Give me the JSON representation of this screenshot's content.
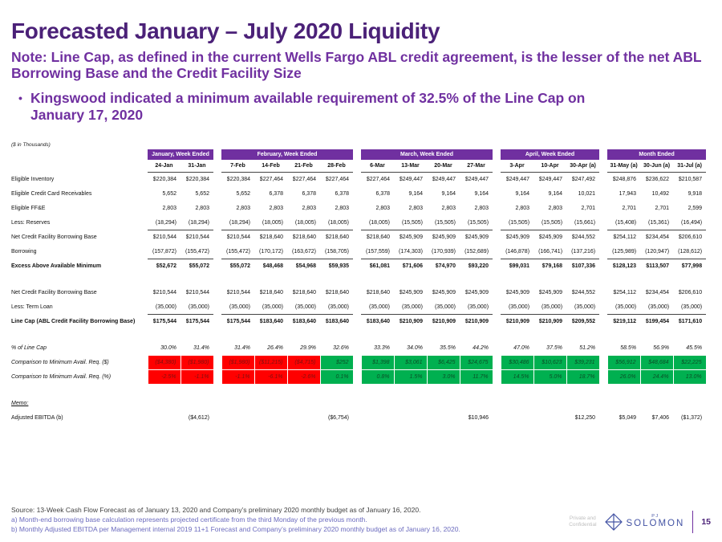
{
  "slide": {
    "title": "Forecasted January – July 2020 Liquidity",
    "subtitle": "Note: Line Cap, as defined in the current Wells Fargo ABL credit agreement, is the lesser of the net ABL Borrowing Base and the Credit Facility Size",
    "bullet_marker": "•",
    "bullet": "Kingswood indicated a minimum available requirement of 32.5% of the Line Cap on January 17, 2020",
    "units_label": "($ in Thousands)"
  },
  "colors": {
    "title": "#4B2178",
    "accent": "#7030A0",
    "header_bg": "#7030A0",
    "negative_bg": "#FF0000",
    "negative_text": "#7F1010",
    "positive_bg": "#00B050",
    "positive_text": "#0B4F27",
    "note_text": "#6B6BBE",
    "source_text": "#3F3F3F",
    "brand": "#4353A4",
    "confidential_text": "#BFBFBF"
  },
  "table": {
    "groups": [
      {
        "label": "January, Week Ended",
        "span": 2
      },
      {
        "label": "February, Week Ended",
        "span": 4
      },
      {
        "label": "March, Week Ended",
        "span": 4
      },
      {
        "label": "April, Week Ended",
        "span": 3
      },
      {
        "label": "Month Ended",
        "span": 3
      }
    ],
    "columns": [
      "24-Jan",
      "31-Jan",
      "7-Feb",
      "14-Feb",
      "21-Feb",
      "28-Feb",
      "6-Mar",
      "13-Mar",
      "20-Mar",
      "27-Mar",
      "3-Apr",
      "10-Apr",
      "30-Apr (a)",
      "31-May (a)",
      "30-Jun (a)",
      "31-Jul (a)"
    ],
    "rows": [
      {
        "label": "Eligible Inventory",
        "values": [
          "$220,384",
          "$220,384",
          "$220,384",
          "$227,464",
          "$227,464",
          "$227,464",
          "$227,464",
          "$249,447",
          "$249,447",
          "$249,447",
          "$249,447",
          "$249,447",
          "$247,492",
          "$248,876",
          "$236,622",
          "$210,587"
        ]
      },
      {
        "label": "Eligible Credit Card Receivables",
        "values": [
          "5,652",
          "5,652",
          "5,652",
          "6,378",
          "6,378",
          "6,378",
          "6,378",
          "9,164",
          "9,164",
          "9,164",
          "9,164",
          "9,164",
          "10,021",
          "17,943",
          "10,492",
          "9,918"
        ]
      },
      {
        "label": "Eligible FF&E",
        "values": [
          "2,803",
          "2,803",
          "2,803",
          "2,803",
          "2,803",
          "2,803",
          "2,803",
          "2,803",
          "2,803",
          "2,803",
          "2,803",
          "2,803",
          "2,701",
          "2,701",
          "2,701",
          "2,599"
        ]
      },
      {
        "label": "Less: Reserves",
        "values": [
          "(18,294)",
          "(18,294)",
          "(18,294)",
          "(18,005)",
          "(18,005)",
          "(18,005)",
          "(18,005)",
          "(15,505)",
          "(15,505)",
          "(15,505)",
          "(15,505)",
          "(15,505)",
          "(15,661)",
          "(15,408)",
          "(15,361)",
          "(16,494)"
        ]
      },
      {
        "label": "Net Credit Facility Borrowing Base",
        "top_border": true,
        "values": [
          "$210,544",
          "$210,544",
          "$210,544",
          "$218,640",
          "$218,640",
          "$218,640",
          "$218,640",
          "$245,909",
          "$245,909",
          "$245,909",
          "$245,909",
          "$245,909",
          "$244,552",
          "$254,112",
          "$234,454",
          "$206,610"
        ]
      },
      {
        "label": "Borrowing",
        "values": [
          "(157,872)",
          "(155,472)",
          "(155,472)",
          "(170,172)",
          "(163,672)",
          "(158,705)",
          "(157,559)",
          "(174,303)",
          "(170,939)",
          "(152,689)",
          "(146,878)",
          "(166,741)",
          "(137,216)",
          "(125,989)",
          "(120,947)",
          "(128,612)"
        ]
      },
      {
        "label": "Excess Above Available Minimum",
        "bold": true,
        "top_border": true,
        "values": [
          "$52,672",
          "$55,072",
          "$55,072",
          "$48,468",
          "$54,968",
          "$59,935",
          "$61,081",
          "$71,606",
          "$74,970",
          "$93,220",
          "$99,031",
          "$79,168",
          "$107,336",
          "$128,123",
          "$113,507",
          "$77,998"
        ]
      },
      {
        "spacer": true
      },
      {
        "label": "Net Credit Facility Borrowing Base",
        "values": [
          "$210,544",
          "$210,544",
          "$210,544",
          "$218,640",
          "$218,640",
          "$218,640",
          "$218,640",
          "$245,909",
          "$245,909",
          "$245,909",
          "$245,909",
          "$245,909",
          "$244,552",
          "$254,112",
          "$234,454",
          "$206,610"
        ]
      },
      {
        "label": "Less: Term Loan",
        "values": [
          "(35,000)",
          "(35,000)",
          "(35,000)",
          "(35,000)",
          "(35,000)",
          "(35,000)",
          "(35,000)",
          "(35,000)",
          "(35,000)",
          "(35,000)",
          "(35,000)",
          "(35,000)",
          "(35,000)",
          "(35,000)",
          "(35,000)",
          "(35,000)"
        ]
      },
      {
        "label": "Line Cap (ABL Credit Facility Borrowing Base)",
        "bold": true,
        "top_border": true,
        "values": [
          "$175,544",
          "$175,544",
          "$175,544",
          "$183,640",
          "$183,640",
          "$183,640",
          "$183,640",
          "$210,909",
          "$210,909",
          "$210,909",
          "$210,909",
          "$210,909",
          "$209,552",
          "$219,112",
          "$199,454",
          "$171,610"
        ]
      },
      {
        "spacer": true
      },
      {
        "label": "% of Line Cap",
        "italic": true,
        "values": [
          "30.0%",
          "31.4%",
          "31.4%",
          "26.4%",
          "29.9%",
          "32.6%",
          "33.3%",
          "34.0%",
          "35.5%",
          "44.2%",
          "47.0%",
          "37.5%",
          "51.2%",
          "58.5%",
          "56.9%",
          "45.5%"
        ]
      },
      {
        "label": "Comparison to Minimum Avail. Req. ($)",
        "italic": true,
        "colors": [
          "r",
          "r",
          "r",
          "r",
          "r",
          "g",
          "g",
          "g",
          "g",
          "g",
          "g",
          "g",
          "g",
          "g",
          "g",
          "g"
        ],
        "values": [
          "($4,380)",
          "($1,980)",
          "($1,980)",
          "($11,215)",
          "($4,715)",
          "$252",
          "$1,398",
          "$3,061",
          "$6,425",
          "$24,675",
          "$30,486",
          "$10,623",
          "$39,231",
          "$56,912",
          "$48,684",
          "$22,225"
        ]
      },
      {
        "label": "Comparison to Minimum Avail. Req. (%)",
        "italic": true,
        "colors": [
          "r",
          "r",
          "r",
          "r",
          "r",
          "g",
          "g",
          "g",
          "g",
          "g",
          "g",
          "g",
          "g",
          "g",
          "g",
          "g"
        ],
        "values": [
          "-2.5%",
          "-1.1%",
          "-1.1%",
          "-6.1%",
          "-2.6%",
          "0.1%",
          "0.8%",
          "1.5%",
          "3.0%",
          "11.7%",
          "14.5%",
          "5.0%",
          "18.7%",
          "26.0%",
          "24.4%",
          "13.0%"
        ]
      },
      {
        "spacer": true
      },
      {
        "label": "Memo:",
        "italic": true,
        "underline": true,
        "values": [
          "",
          "",
          "",
          "",
          "",
          "",
          "",
          "",
          "",
          "",
          "",
          "",
          "",
          "",
          "",
          ""
        ]
      },
      {
        "label": "Adjusted EBITDA (b)",
        "values": [
          "",
          "($4,612)",
          "",
          "",
          "",
          "($6,754)",
          "",
          "",
          "",
          "$10,946",
          "",
          "",
          "$12,250",
          "$5,049",
          "$7,406",
          "($1,372)"
        ]
      }
    ]
  },
  "footer": {
    "source": "Source: 13-Week Cash Flow Forecast as of January 13, 2020 and Company’s preliminary 2020 monthly budget as of January 16, 2020.",
    "note_a": "a) Month-end borrowing base calculation represents projected certificate from the third Monday of the previous month.",
    "note_b": "b) Monthly Adjusted EBITDA per Management internal 2019 11+1 Forecast and Company’s preliminary 2020 monthly budget as of January 16, 2020.",
    "confidential_line1": "Private and",
    "confidential_line2": "Confidential",
    "brand_pj": "PJ",
    "brand_name": "SOLOMON",
    "page_number": "15"
  }
}
